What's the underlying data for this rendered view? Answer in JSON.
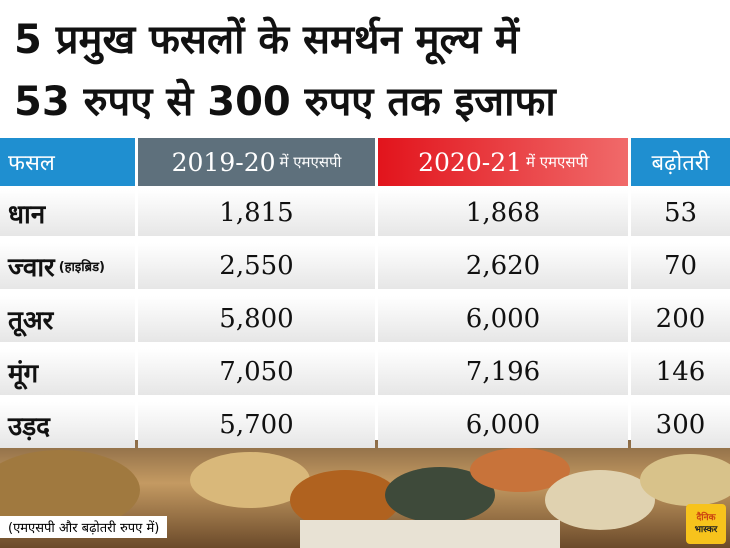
{
  "header": {
    "title_line1": "5 प्रमुख फसलों के समर्थन मूल्य में",
    "title_line2": "53 रुपए से 300 रुपए तक इजाफा"
  },
  "table": {
    "columns": [
      {
        "text": "फसल"
      },
      {
        "text": "2019-20",
        "suffix": "में एमएसपी"
      },
      {
        "text": "2020-21",
        "suffix": "में एमएसपी"
      },
      {
        "text": "बढ़ोतरी"
      }
    ],
    "rows": [
      {
        "crop": "धान",
        "v2019": "1,815",
        "v2020": "1,868",
        "increase": "53"
      },
      {
        "crop": "ज्वार",
        "crop_note": "(हाइब्रिड)",
        "v2019": "2,550",
        "v2020": "2,620",
        "increase": "70"
      },
      {
        "crop": "तूअर",
        "v2019": "5,800",
        "v2020": "6,000",
        "increase": "200"
      },
      {
        "crop": "मूंग",
        "v2019": "7,050",
        "v2020": "7,196",
        "increase": "146"
      },
      {
        "crop": "उड़द",
        "v2019": "5,700",
        "v2020": "6,000",
        "increase": "300"
      }
    ]
  },
  "footnote": "(एमएसपी और बढ़ोतरी रुपए में)",
  "logo": {
    "line1": "दैनिक",
    "line2": "भास्कर"
  }
}
